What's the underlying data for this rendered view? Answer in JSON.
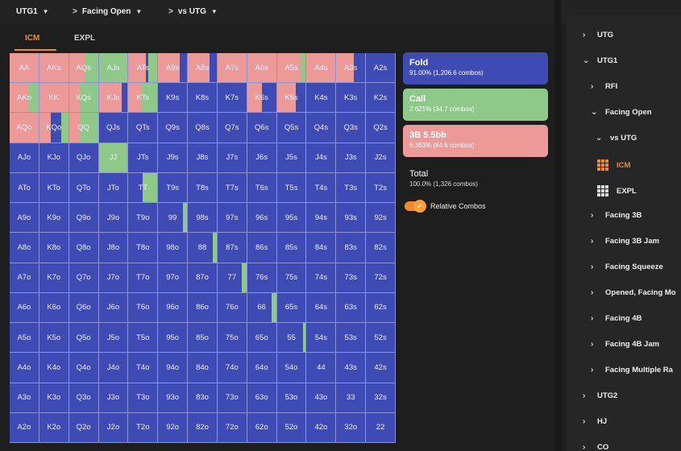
{
  "breadcrumb": [
    {
      "label": "UTG1",
      "prefix": ""
    },
    {
      "label": "Facing Open",
      "prefix": ">"
    },
    {
      "label": "vs UTG",
      "prefix": ">"
    }
  ],
  "tabs": [
    {
      "label": "ICM",
      "active": true
    },
    {
      "label": "EXPL",
      "active": false
    }
  ],
  "colors": {
    "fold": "#3e4bb5",
    "call": "#8ec98a",
    "raise": "#eb9a98",
    "accent": "#f08a2c"
  },
  "grid": [
    [
      "AA",
      "AKs",
      "AQs",
      "AJs",
      "ATs",
      "A9s",
      "A8s",
      "A7s",
      "A6s",
      "A5s",
      "A4s",
      "A3s",
      "A2s"
    ],
    [
      "AKo",
      "KK",
      "KQs",
      "KJs",
      "KTs",
      "K9s",
      "K8s",
      "K7s",
      "K6s",
      "K5s",
      "K4s",
      "K3s",
      "K2s"
    ],
    [
      "AQo",
      "KQo",
      "QQ",
      "QJs",
      "QTs",
      "Q9s",
      "Q8s",
      "Q7s",
      "Q6s",
      "Q5s",
      "Q4s",
      "Q3s",
      "Q2s"
    ],
    [
      "AJo",
      "KJo",
      "QJo",
      "JJ",
      "JTs",
      "J9s",
      "J8s",
      "J7s",
      "J6s",
      "J5s",
      "J4s",
      "J3s",
      "J2s"
    ],
    [
      "ATo",
      "KTo",
      "QTo",
      "JTo",
      "TT",
      "T9s",
      "T8s",
      "T7s",
      "T6s",
      "T5s",
      "T4s",
      "T3s",
      "T2s"
    ],
    [
      "A9o",
      "K9o",
      "Q9o",
      "J9o",
      "T9o",
      "99",
      "98s",
      "97s",
      "96s",
      "95s",
      "94s",
      "93s",
      "92s"
    ],
    [
      "A8o",
      "K8o",
      "Q8o",
      "J8o",
      "T8o",
      "98o",
      "88",
      "87s",
      "86s",
      "85s",
      "84s",
      "83s",
      "82s"
    ],
    [
      "A7o",
      "K7o",
      "Q7o",
      "J7o",
      "T7o",
      "97o",
      "87o",
      "77",
      "76s",
      "75s",
      "74s",
      "73s",
      "72s"
    ],
    [
      "A6o",
      "K6o",
      "Q6o",
      "J6o",
      "T6o",
      "96o",
      "86o",
      "76o",
      "66",
      "65s",
      "64s",
      "63s",
      "62s"
    ],
    [
      "A5o",
      "K5o",
      "Q5o",
      "J5o",
      "T5o",
      "95o",
      "85o",
      "75o",
      "65o",
      "55",
      "54s",
      "53s",
      "52s"
    ],
    [
      "A4o",
      "K4o",
      "Q4o",
      "J4o",
      "T4o",
      "94o",
      "84o",
      "74o",
      "64o",
      "54o",
      "44",
      "43s",
      "42s"
    ],
    [
      "A3o",
      "K3o",
      "Q3o",
      "J3o",
      "T3o",
      "93o",
      "83o",
      "73o",
      "63o",
      "53o",
      "43o",
      "33",
      "32s"
    ],
    [
      "A2o",
      "K2o",
      "Q2o",
      "J2o",
      "T2o",
      "92o",
      "82o",
      "72o",
      "62o",
      "52o",
      "42o",
      "32o",
      "22"
    ]
  ],
  "hand_strategies": {
    "AA": {
      "raise": 1.0
    },
    "AKs": {
      "raise": 1.0
    },
    "AQs": {
      "call": 0.45,
      "raise": 0.55
    },
    "AJs": {
      "call": 1.0
    },
    "ATs": {
      "raise": 0.6,
      "fold": 0.1,
      "call": 0.3
    },
    "A9s": {
      "fold": 0.25,
      "raise": 0.75
    },
    "A8s": {
      "fold": 0.25,
      "raise": 0.75
    },
    "A7s": {
      "raise": 1.0
    },
    "A6s": {
      "raise": 1.0
    },
    "A5s": {
      "call": 0.15,
      "raise": 0.85
    },
    "A4s": {
      "raise": 1.0
    },
    "A3s": {
      "fold": 0.4,
      "raise": 0.6
    },
    "A2s": {
      "fold": 1.0
    },
    "AKo": {
      "call": 0.35,
      "raise": 0.65
    },
    "KK": {
      "raise": 1.0
    },
    "KQs": {
      "call": 0.6,
      "raise": 0.4
    },
    "KJs": {
      "fold": 0.2,
      "raise": 0.8
    },
    "KTs": {
      "call": 0.55,
      "raise": 0.45
    },
    "K6s": {
      "fold": 0.5,
      "raise": 0.5
    },
    "K5s": {
      "fold": 0.35,
      "raise": 0.65
    },
    "K3s": {
      "fold": 1.0
    },
    "AQo": {
      "raise": 1.0
    },
    "KQo": {
      "raise": 0.4,
      "fold": 0.35,
      "call": 0.25
    },
    "QQ": {
      "call": 0.6,
      "raise": 0.4
    },
    "JJ": {
      "call": 1.0
    },
    "TT": {
      "fold": 0.5,
      "call": 0.5
    },
    "99": {
      "fold": 0.85,
      "call": 0.15
    },
    "88": {
      "fold": 0.85,
      "call": 0.15
    },
    "77": {
      "fold": 0.85,
      "call": 0.15
    },
    "66": {
      "fold": 0.85,
      "call": 0.15
    },
    "55": {
      "fold": 0.9,
      "call": 0.1
    }
  },
  "actions": {
    "fold": {
      "title": "Fold",
      "detail": "91.00% (1,206.6 combos)"
    },
    "call": {
      "title": "Call",
      "detail": "2.621% (34.7 combos)"
    },
    "raise": {
      "title": "3B 5.5bb",
      "detail": "6.383% (84.6 combos)"
    }
  },
  "total": {
    "title": "Total",
    "detail": "100.0% (1,326 combos)"
  },
  "relative_combos": {
    "label": "Relative Combos",
    "enabled": true
  },
  "tree": [
    {
      "label": "UTG",
      "depth": 0,
      "chevron": "›",
      "type": "node"
    },
    {
      "label": "UTG1",
      "depth": 0,
      "chevron": "⌄",
      "type": "node"
    },
    {
      "label": "RFI",
      "depth": 1,
      "chevron": "›",
      "type": "node"
    },
    {
      "label": "Facing Open",
      "depth": 1,
      "chevron": "⌄",
      "type": "node"
    },
    {
      "label": "vs UTG",
      "depth": 2,
      "chevron": "⌄",
      "type": "node"
    },
    {
      "label": "ICM",
      "depth": 3,
      "chevron": "",
      "type": "leaf",
      "active": true
    },
    {
      "label": "EXPL",
      "depth": 3,
      "chevron": "",
      "type": "leaf",
      "active": false
    },
    {
      "label": "Facing 3B",
      "depth": 1,
      "chevron": "›",
      "type": "node"
    },
    {
      "label": "Facing 3B Jam",
      "depth": 1,
      "chevron": "›",
      "type": "node"
    },
    {
      "label": "Facing Squeeze",
      "depth": 1,
      "chevron": "›",
      "type": "node"
    },
    {
      "label": "Opened, Facing Mo",
      "depth": 1,
      "chevron": "›",
      "type": "node"
    },
    {
      "label": "Facing 4B",
      "depth": 1,
      "chevron": "›",
      "type": "node"
    },
    {
      "label": "Facing 4B Jam",
      "depth": 1,
      "chevron": "›",
      "type": "node"
    },
    {
      "label": "Facing Multiple Ra",
      "depth": 1,
      "chevron": "›",
      "type": "node"
    },
    {
      "label": "UTG2",
      "depth": 0,
      "chevron": "›",
      "type": "node"
    },
    {
      "label": "HJ",
      "depth": 0,
      "chevron": "›",
      "type": "node"
    },
    {
      "label": "CO",
      "depth": 0,
      "chevron": "›",
      "type": "node"
    }
  ]
}
